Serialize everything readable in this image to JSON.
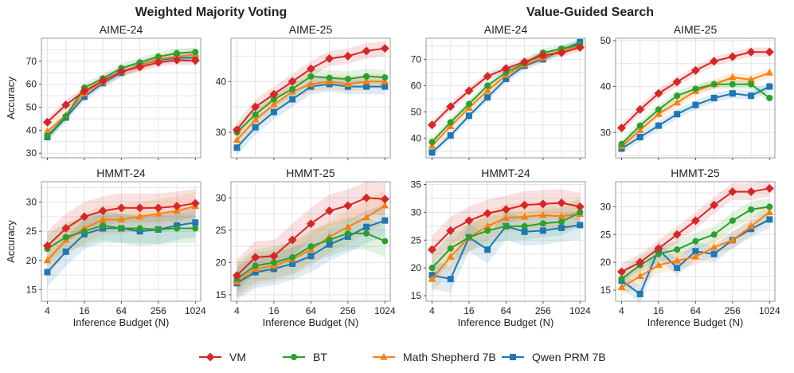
{
  "section_titles": [
    "Weighted Majority Voting",
    "Value-Guided Search"
  ],
  "legend": [
    {
      "name": "VM",
      "color": "#d62728",
      "marker": "diamond"
    },
    {
      "name": "BT",
      "color": "#2ca02c",
      "marker": "circle"
    },
    {
      "name": "Math Shepherd 7B",
      "color": "#ff7f0e",
      "marker": "triangle"
    },
    {
      "name": "Qwen PRM 7B",
      "color": "#1f77b4",
      "marker": "square"
    }
  ],
  "chart_data": [
    {
      "type": "line",
      "section": "Weighted Majority Voting",
      "title": "AIME-24",
      "ylabel": "Accuracy",
      "xlabel": "",
      "x": [
        4,
        8,
        16,
        32,
        64,
        128,
        256,
        512,
        1024
      ],
      "xticks": [
        4,
        16,
        64,
        256,
        1024
      ],
      "yticks": [
        30,
        40,
        50,
        60,
        70
      ],
      "ylim": [
        28,
        80
      ],
      "band": 2.0,
      "series": [
        {
          "name": "VM",
          "values": [
            43.5,
            51.0,
            57.0,
            61.5,
            65.5,
            67.5,
            69.5,
            70.5,
            70.3
          ]
        },
        {
          "name": "BT",
          "values": [
            37.5,
            46.0,
            58.5,
            62.5,
            67.0,
            69.5,
            72.0,
            73.5,
            74.0
          ]
        },
        {
          "name": "Math Shepherd 7B",
          "values": [
            39.5,
            46.5,
            56.0,
            61.0,
            65.5,
            68.0,
            71.0,
            72.0,
            73.0
          ]
        },
        {
          "name": "Qwen PRM 7B",
          "values": [
            37.0,
            45.5,
            54.5,
            60.5,
            65.0,
            68.5,
            70.5,
            71.5,
            71.5
          ]
        }
      ]
    },
    {
      "type": "line",
      "section": "Weighted Majority Voting",
      "title": "AIME-25",
      "ylabel": "",
      "xlabel": "",
      "x": [
        4,
        8,
        16,
        32,
        64,
        128,
        256,
        512,
        1024
      ],
      "xticks": [
        4,
        16,
        64,
        256,
        1024
      ],
      "yticks": [
        30,
        40
      ],
      "ylim": [
        25,
        48.5
      ],
      "band": 1.5,
      "series": [
        {
          "name": "VM",
          "values": [
            30.5,
            35.0,
            37.5,
            40.0,
            42.5,
            44.5,
            45.0,
            46.0,
            46.5
          ]
        },
        {
          "name": "BT",
          "values": [
            30.0,
            33.5,
            36.5,
            38.5,
            41.0,
            40.7,
            40.5,
            41.0,
            40.8
          ]
        },
        {
          "name": "Math Shepherd 7B",
          "values": [
            28.5,
            32.5,
            35.5,
            38.0,
            39.5,
            40.0,
            39.5,
            40.0,
            40.0
          ]
        },
        {
          "name": "Qwen PRM 7B",
          "values": [
            27.0,
            31.0,
            34.0,
            36.5,
            39.0,
            39.5,
            39.0,
            39.0,
            39.0
          ]
        }
      ]
    },
    {
      "type": "line",
      "section": "Value-Guided Search",
      "title": "AIME-24",
      "ylabel": "",
      "xlabel": "",
      "x": [
        4,
        8,
        16,
        32,
        64,
        128,
        256,
        512,
        1024
      ],
      "xticks": [
        4,
        16,
        64,
        256,
        1024
      ],
      "yticks": [
        40,
        50,
        60,
        70
      ],
      "ylim": [
        32.5,
        78
      ],
      "band": 1.5,
      "series": [
        {
          "name": "VM",
          "values": [
            45.0,
            52.0,
            58.0,
            63.5,
            66.5,
            69.0,
            71.5,
            72.5,
            74.5
          ]
        },
        {
          "name": "BT",
          "values": [
            38.5,
            46.0,
            53.0,
            60.0,
            65.0,
            68.5,
            72.5,
            74.0,
            75.5
          ]
        },
        {
          "name": "Math Shepherd 7B",
          "values": [
            37.0,
            44.5,
            51.5,
            58.0,
            64.0,
            68.0,
            70.5,
            73.5,
            75.0
          ]
        },
        {
          "name": "Qwen PRM 7B",
          "values": [
            34.5,
            41.0,
            48.5,
            55.5,
            62.5,
            67.5,
            70.0,
            73.5,
            76.5
          ]
        }
      ]
    },
    {
      "type": "line",
      "section": "Value-Guided Search",
      "title": "AIME-25",
      "ylabel": "",
      "xlabel": "",
      "x": [
        4,
        8,
        16,
        32,
        64,
        128,
        256,
        512,
        1024
      ],
      "xticks": [
        4,
        16,
        64,
        256,
        1024
      ],
      "yticks": [
        30,
        40,
        50
      ],
      "ylim": [
        24.5,
        50.5
      ],
      "band": 1.0,
      "series": [
        {
          "name": "VM",
          "values": [
            31.0,
            35.0,
            38.5,
            41.0,
            43.5,
            45.5,
            46.5,
            47.5,
            47.5
          ]
        },
        {
          "name": "BT",
          "values": [
            27.5,
            31.5,
            35.0,
            38.0,
            39.5,
            40.5,
            40.5,
            40.5,
            37.5
          ]
        },
        {
          "name": "Math Shepherd 7B",
          "values": [
            27.0,
            30.5,
            34.0,
            36.5,
            39.0,
            40.5,
            42.0,
            41.5,
            43.0
          ]
        },
        {
          "name": "Qwen PRM 7B",
          "values": [
            26.5,
            29.0,
            31.5,
            34.0,
            36.0,
            37.5,
            38.5,
            38.0,
            40.0
          ]
        }
      ]
    },
    {
      "type": "line",
      "section": "Weighted Majority Voting",
      "title": "HMMT-24",
      "ylabel": "Accuracy",
      "xlabel": "Inference Budget (N)",
      "x": [
        4,
        8,
        16,
        32,
        64,
        128,
        256,
        512,
        1024
      ],
      "xticks": [
        4,
        16,
        64,
        256,
        1024
      ],
      "yticks": [
        15,
        20,
        25,
        30
      ],
      "ylim": [
        13,
        33.5
      ],
      "band": 2.5,
      "series": [
        {
          "name": "VM",
          "values": [
            22.5,
            25.5,
            27.5,
            28.5,
            29.0,
            29.0,
            29.0,
            29.3,
            29.8
          ]
        },
        {
          "name": "BT",
          "values": [
            22.0,
            24.0,
            25.0,
            26.0,
            25.5,
            25.5,
            25.3,
            25.5,
            25.5
          ]
        },
        {
          "name": "Math Shepherd 7B",
          "values": [
            20.0,
            23.5,
            25.5,
            27.0,
            27.0,
            27.5,
            28.0,
            28.5,
            29.3
          ]
        },
        {
          "name": "Qwen PRM 7B",
          "values": [
            18.0,
            21.5,
            24.5,
            25.5,
            25.5,
            25.0,
            25.3,
            26.0,
            26.5
          ]
        }
      ]
    },
    {
      "type": "line",
      "section": "Weighted Majority Voting",
      "title": "HMMT-25",
      "ylabel": "",
      "xlabel": "Inference Budget (N)",
      "x": [
        4,
        8,
        16,
        32,
        64,
        128,
        256,
        512,
        1024
      ],
      "xticks": [
        4,
        16,
        64,
        256,
        1024
      ],
      "yticks": [
        15,
        20,
        25,
        30
      ],
      "ylim": [
        14,
        32.5
      ],
      "band": 2.5,
      "series": [
        {
          "name": "VM",
          "values": [
            18.0,
            20.8,
            21.0,
            23.5,
            26.0,
            28.0,
            28.8,
            30.0,
            29.8
          ]
        },
        {
          "name": "BT",
          "values": [
            17.5,
            19.5,
            20.0,
            20.8,
            22.5,
            23.5,
            24.5,
            24.5,
            23.3
          ]
        },
        {
          "name": "Math Shepherd 7B",
          "values": [
            17.0,
            19.0,
            19.5,
            20.5,
            22.0,
            24.0,
            25.5,
            27.0,
            28.8
          ]
        },
        {
          "name": "Qwen PRM 7B",
          "values": [
            16.8,
            18.5,
            19.0,
            19.8,
            21.0,
            22.8,
            24.0,
            25.5,
            26.5
          ]
        }
      ]
    },
    {
      "type": "line",
      "section": "Value-Guided Search",
      "title": "HMMT-24",
      "ylabel": "",
      "xlabel": "Inference Budget (N)",
      "x": [
        4,
        8,
        16,
        32,
        64,
        128,
        256,
        512,
        1024
      ],
      "xticks": [
        4,
        16,
        64,
        256,
        1024
      ],
      "yticks": [
        15,
        20,
        25,
        30,
        35
      ],
      "ylim": [
        14,
        35.5
      ],
      "band": 2.5,
      "series": [
        {
          "name": "VM",
          "values": [
            23.3,
            26.7,
            28.5,
            29.8,
            30.5,
            31.3,
            31.5,
            31.7,
            31.0
          ]
        },
        {
          "name": "BT",
          "values": [
            20.0,
            23.5,
            25.5,
            26.7,
            27.5,
            27.5,
            28.0,
            28.3,
            30.0
          ]
        },
        {
          "name": "Math Shepherd 7B",
          "values": [
            18.0,
            22.0,
            25.5,
            27.5,
            29.0,
            29.2,
            29.5,
            29.3,
            29.7
          ]
        },
        {
          "name": "Qwen PRM 7B",
          "values": [
            18.7,
            18.0,
            25.5,
            23.3,
            27.5,
            26.5,
            26.7,
            27.2,
            27.7
          ]
        }
      ]
    },
    {
      "type": "line",
      "section": "Value-Guided Search",
      "title": "HMMT-25",
      "ylabel": "",
      "xlabel": "Inference Budget (N)",
      "x": [
        4,
        8,
        16,
        32,
        64,
        128,
        256,
        512,
        1024
      ],
      "xticks": [
        4,
        16,
        64,
        256,
        1024
      ],
      "yticks": [
        15,
        20,
        25,
        30
      ],
      "ylim": [
        13,
        34.5
      ],
      "band": 1.5,
      "series": [
        {
          "name": "VM",
          "values": [
            18.3,
            20.0,
            22.5,
            25.0,
            27.5,
            30.3,
            32.7,
            32.7,
            33.3
          ]
        },
        {
          "name": "BT",
          "values": [
            17.0,
            19.5,
            21.5,
            22.3,
            23.8,
            25.0,
            27.5,
            29.5,
            30.0
          ]
        },
        {
          "name": "Math Shepherd 7B",
          "values": [
            15.5,
            17.5,
            19.5,
            20.3,
            21.0,
            22.7,
            24.0,
            26.5,
            29.0
          ]
        },
        {
          "name": "Qwen PRM 7B",
          "values": [
            16.7,
            14.3,
            22.3,
            19.0,
            22.0,
            21.5,
            24.0,
            26.0,
            27.7
          ]
        }
      ]
    }
  ]
}
